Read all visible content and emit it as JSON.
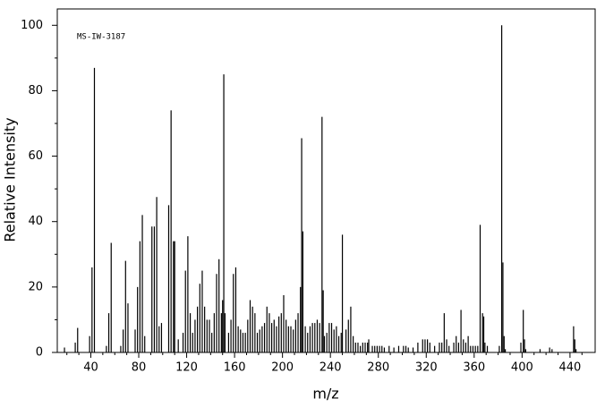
{
  "chart_data": {
    "type": "stem",
    "annotation": "MS-IW-3187",
    "xlabel": "m/z",
    "ylabel": "Relative Intensity",
    "color": "#000000",
    "xlim": [
      12,
      461
    ],
    "ylim": [
      0,
      105
    ],
    "xticks": [
      40,
      80,
      120,
      160,
      200,
      240,
      280,
      320,
      360,
      400,
      440
    ],
    "yticks": [
      0,
      20,
      40,
      60,
      80,
      100
    ],
    "xminorticks": [
      20,
      30,
      50,
      60,
      70,
      90,
      100,
      110,
      130,
      140,
      150,
      170,
      180,
      190,
      210,
      220,
      230,
      250,
      260,
      270,
      290,
      300,
      310,
      330,
      340,
      350,
      370,
      380,
      390,
      410,
      420,
      430,
      450
    ],
    "yminorticks": [
      10,
      30,
      50,
      70,
      90
    ],
    "x": [
      18,
      27,
      29,
      39,
      41,
      43,
      53,
      55,
      57,
      65,
      67,
      69,
      71,
      77,
      79,
      81,
      83,
      85,
      91,
      93,
      95,
      97,
      99,
      105,
      107,
      109,
      110,
      113,
      117,
      119,
      121,
      123,
      125,
      127,
      129,
      131,
      133,
      135,
      137,
      139,
      141,
      143,
      145,
      147,
      149,
      150,
      151,
      152,
      155,
      157,
      159,
      161,
      163,
      165,
      167,
      169,
      171,
      173,
      175,
      177,
      179,
      181,
      183,
      185,
      187,
      189,
      191,
      193,
      195,
      197,
      199,
      201,
      203,
      205,
      207,
      209,
      211,
      213,
      215,
      216,
      217,
      219,
      221,
      223,
      225,
      227,
      229,
      231,
      233,
      234,
      235,
      237,
      239,
      241,
      243,
      245,
      247,
      249,
      250,
      253,
      255,
      257,
      259,
      261,
      263,
      265,
      267,
      269,
      271,
      272,
      275,
      277,
      279,
      281,
      283,
      285,
      289,
      293,
      297,
      301,
      303,
      305,
      309,
      313,
      317,
      319,
      321,
      323,
      327,
      331,
      333,
      335,
      337,
      339,
      343,
      345,
      347,
      349,
      351,
      353,
      355,
      357,
      359,
      361,
      363,
      365,
      367,
      368,
      369,
      371,
      381,
      383,
      384,
      385,
      386,
      399,
      401,
      402,
      403,
      415,
      423,
      425,
      443,
      444,
      445
    ],
    "values": [
      1.5,
      3,
      7.5,
      5,
      26,
      87,
      2,
      12,
      33.5,
      2,
      7,
      28,
      15,
      7,
      20,
      34,
      42,
      5,
      38.5,
      38.5,
      47.5,
      8,
      9,
      45,
      74,
      34,
      34,
      4,
      6,
      25,
      35.5,
      12,
      6,
      10,
      14,
      21,
      25,
      14,
      10,
      10,
      6,
      12,
      24,
      28.5,
      12,
      16,
      85,
      12,
      6,
      10,
      24,
      26,
      8,
      7,
      6,
      6,
      10,
      16,
      14,
      12,
      6,
      7,
      8,
      9,
      14,
      12,
      9,
      10,
      8,
      11,
      12,
      17.5,
      10,
      8,
      8,
      7,
      10,
      12,
      20,
      65.5,
      37,
      8,
      6,
      8,
      9,
      9,
      10,
      9,
      72,
      19,
      5,
      6,
      9,
      9,
      7,
      8,
      5,
      6,
      36,
      7,
      10,
      14,
      5,
      3,
      3,
      2,
      3,
      3,
      3,
      4,
      2,
      2,
      2,
      2,
      2,
      1.5,
      2,
      1.5,
      2,
      2,
      2,
      1.5,
      1.5,
      3,
      4,
      4,
      4,
      3,
      2,
      3,
      3,
      12,
      4,
      2,
      3,
      5,
      3,
      13,
      4,
      3,
      5,
      2,
      2,
      2,
      2,
      39,
      12,
      11,
      3,
      2,
      2,
      100,
      27.5,
      5,
      1,
      3,
      13,
      4,
      1,
      1,
      1.5,
      1,
      8,
      4,
      1
    ]
  }
}
